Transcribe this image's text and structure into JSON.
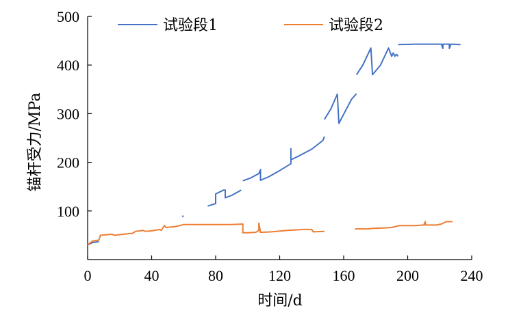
{
  "chart_data": {
    "type": "line",
    "xlabel": "时间/d",
    "ylabel": "锚杆受力/MPa",
    "xlim": [
      0,
      240
    ],
    "ylim": [
      0,
      500
    ],
    "x_ticks": [
      0,
      40,
      80,
      120,
      160,
      200,
      240
    ],
    "y_ticks": [
      100,
      200,
      300,
      400,
      500
    ],
    "grid": false,
    "legend_position": "top",
    "series": [
      {
        "name": "试验段1",
        "color": "#4472C4",
        "segments": [
          [
            [
              0,
              30
            ],
            [
              3,
              35
            ],
            [
              7,
              37
            ]
          ],
          [
            [
              59,
              89
            ],
            [
              60,
              89
            ]
          ],
          [
            [
              75,
              110
            ],
            [
              80,
              115
            ],
            [
              80,
              135
            ],
            [
              85,
              143
            ],
            [
              86,
              143
            ],
            [
              86,
              127
            ],
            [
              90,
              132
            ],
            [
              96,
              143
            ]
          ],
          [
            [
              97,
              162
            ],
            [
              102,
              168
            ],
            [
              107,
              177
            ],
            [
              108,
              185
            ],
            [
              108,
              163
            ],
            [
              113,
              170
            ],
            [
              120,
              183
            ],
            [
              127,
              197
            ],
            [
              127,
              228
            ],
            [
              127,
              205
            ],
            [
              132,
              213
            ],
            [
              140,
              227
            ],
            [
              147,
              245
            ],
            [
              148,
              253
            ]
          ],
          [
            [
              148,
              288
            ],
            [
              152,
              310
            ],
            [
              156,
              340
            ],
            [
              157,
              280
            ],
            [
              161,
              305
            ],
            [
              165,
              330
            ],
            [
              168,
              341
            ]
          ],
          [
            [
              168,
              380
            ],
            [
              172,
              400
            ],
            [
              177,
              435
            ],
            [
              178,
              380
            ],
            [
              183,
              400
            ],
            [
              188,
              435
            ],
            [
              190,
              418
            ],
            [
              191,
              425
            ],
            [
              192,
              418
            ],
            [
              193,
              422
            ],
            [
              194,
              418
            ]
          ],
          [
            [
              194,
              442
            ],
            [
              205,
              443
            ],
            [
              215,
              443
            ],
            [
              221,
              443
            ],
            [
              222,
              434
            ],
            [
              222,
              443
            ],
            [
              226,
              443
            ],
            [
              226,
              434
            ],
            [
              227,
              443
            ],
            [
              233,
              442
            ]
          ]
        ]
      },
      {
        "name": "试验段2",
        "color": "#ED7D31",
        "segments": [
          [
            [
              0,
              30
            ],
            [
              3,
              38
            ],
            [
              7,
              40
            ],
            [
              8,
              50
            ],
            [
              15,
              52
            ],
            [
              17,
              50
            ],
            [
              25,
              53
            ],
            [
              28,
              54
            ],
            [
              30,
              58
            ],
            [
              35,
              60
            ],
            [
              36,
              58
            ],
            [
              40,
              59
            ],
            [
              45,
              62
            ],
            [
              46,
              60
            ],
            [
              47,
              65
            ],
            [
              48,
              70
            ],
            [
              49,
              66
            ],
            [
              55,
              68
            ],
            [
              60,
              72
            ],
            [
              75,
              72
            ],
            [
              90,
              72
            ],
            [
              97,
              73
            ],
            [
              97,
              55
            ],
            [
              100,
              55
            ],
            [
              105,
              56
            ],
            [
              107,
              60
            ],
            [
              107,
              75
            ],
            [
              108,
              56
            ],
            [
              115,
              57
            ],
            [
              125,
              60
            ],
            [
              135,
              62
            ],
            [
              140,
              62
            ],
            [
              141,
              57
            ],
            [
              148,
              58
            ]
          ],
          [
            [
              167,
              63
            ],
            [
              175,
              63
            ],
            [
              178,
              64
            ],
            [
              185,
              65
            ],
            [
              190,
              66
            ],
            [
              195,
              70
            ],
            [
              205,
              70
            ],
            [
              210,
              71
            ],
            [
              211,
              78
            ],
            [
              211,
              71
            ],
            [
              218,
              71
            ],
            [
              221,
              73
            ],
            [
              224,
              78
            ],
            [
              228,
              78
            ]
          ]
        ]
      }
    ]
  }
}
